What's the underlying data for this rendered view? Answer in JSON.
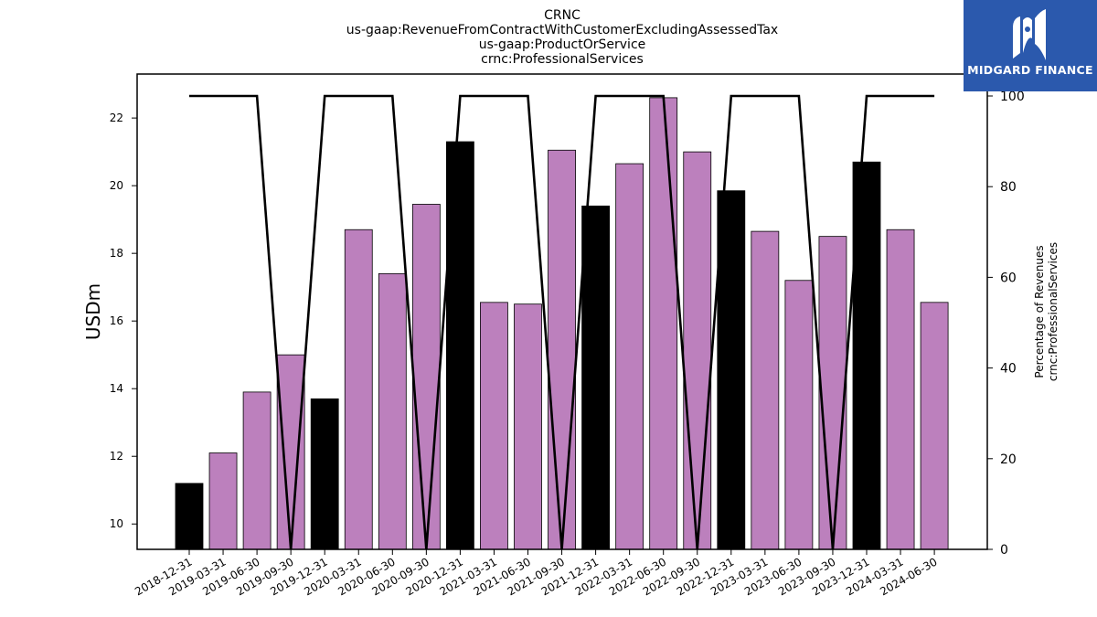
{
  "brand": {
    "name": "MIDGARD FINANCE",
    "background": "#2b59ad",
    "text_color": "#ffffff"
  },
  "chart_data": {
    "type": "bar",
    "title_lines": [
      "CRNC",
      "us-gaap:RevenueFromContractWithCustomerExcludingAssessedTax",
      "us-gaap:ProductOrService",
      "crnc:ProfessionalServices"
    ],
    "ylabel": "USDm",
    "ylabel_right": [
      "Percentage of Revenues",
      "crnc:ProfessionalServices"
    ],
    "categories": [
      "2018-12-31",
      "2019-03-31",
      "2019-06-30",
      "2019-09-30",
      "2019-12-31",
      "2020-03-31",
      "2020-06-30",
      "2020-09-30",
      "2020-12-31",
      "2021-03-31",
      "2021-06-30",
      "2021-09-30",
      "2021-12-31",
      "2022-03-31",
      "2022-06-30",
      "2022-09-30",
      "2022-12-31",
      "2023-03-31",
      "2023-06-30",
      "2023-09-30",
      "2023-12-31",
      "2024-03-31",
      "2024-06-30"
    ],
    "series": [
      {
        "type": "bar",
        "values": [
          11.2,
          12.1,
          13.9,
          15.0,
          13.7,
          18.7,
          17.4,
          19.45,
          21.3,
          16.55,
          16.5,
          21.05,
          19.4,
          20.65,
          22.6,
          21.0,
          19.85,
          18.65,
          17.2,
          18.5,
          20.7,
          18.7,
          16.55
        ],
        "colors": [
          "#000000",
          "#bc80bd",
          "#bc80bd",
          "#bc80bd",
          "#000000",
          "#bc80bd",
          "#bc80bd",
          "#bc80bd",
          "#000000",
          "#bc80bd",
          "#bc80bd",
          "#bc80bd",
          "#000000",
          "#bc80bd",
          "#bc80bd",
          "#bc80bd",
          "#000000",
          "#bc80bd",
          "#bc80bd",
          "#bc80bd",
          "#000000",
          "#bc80bd",
          "#bc80bd"
        ]
      },
      {
        "type": "line",
        "axis": "right",
        "color": "#000000",
        "values": [
          100,
          100,
          100,
          0,
          100,
          100,
          100,
          0,
          100,
          100,
          100,
          0,
          100,
          100,
          100,
          0,
          100,
          100,
          100,
          0,
          100,
          100,
          100
        ]
      }
    ],
    "ylim": [
      9.25,
      23.3
    ],
    "ylim_right": [
      0,
      104.84
    ],
    "yticks": [
      10,
      12,
      14,
      16,
      18,
      20,
      22
    ],
    "yticks_right": [
      0,
      20,
      40,
      60,
      80,
      100
    ],
    "grid": false
  }
}
